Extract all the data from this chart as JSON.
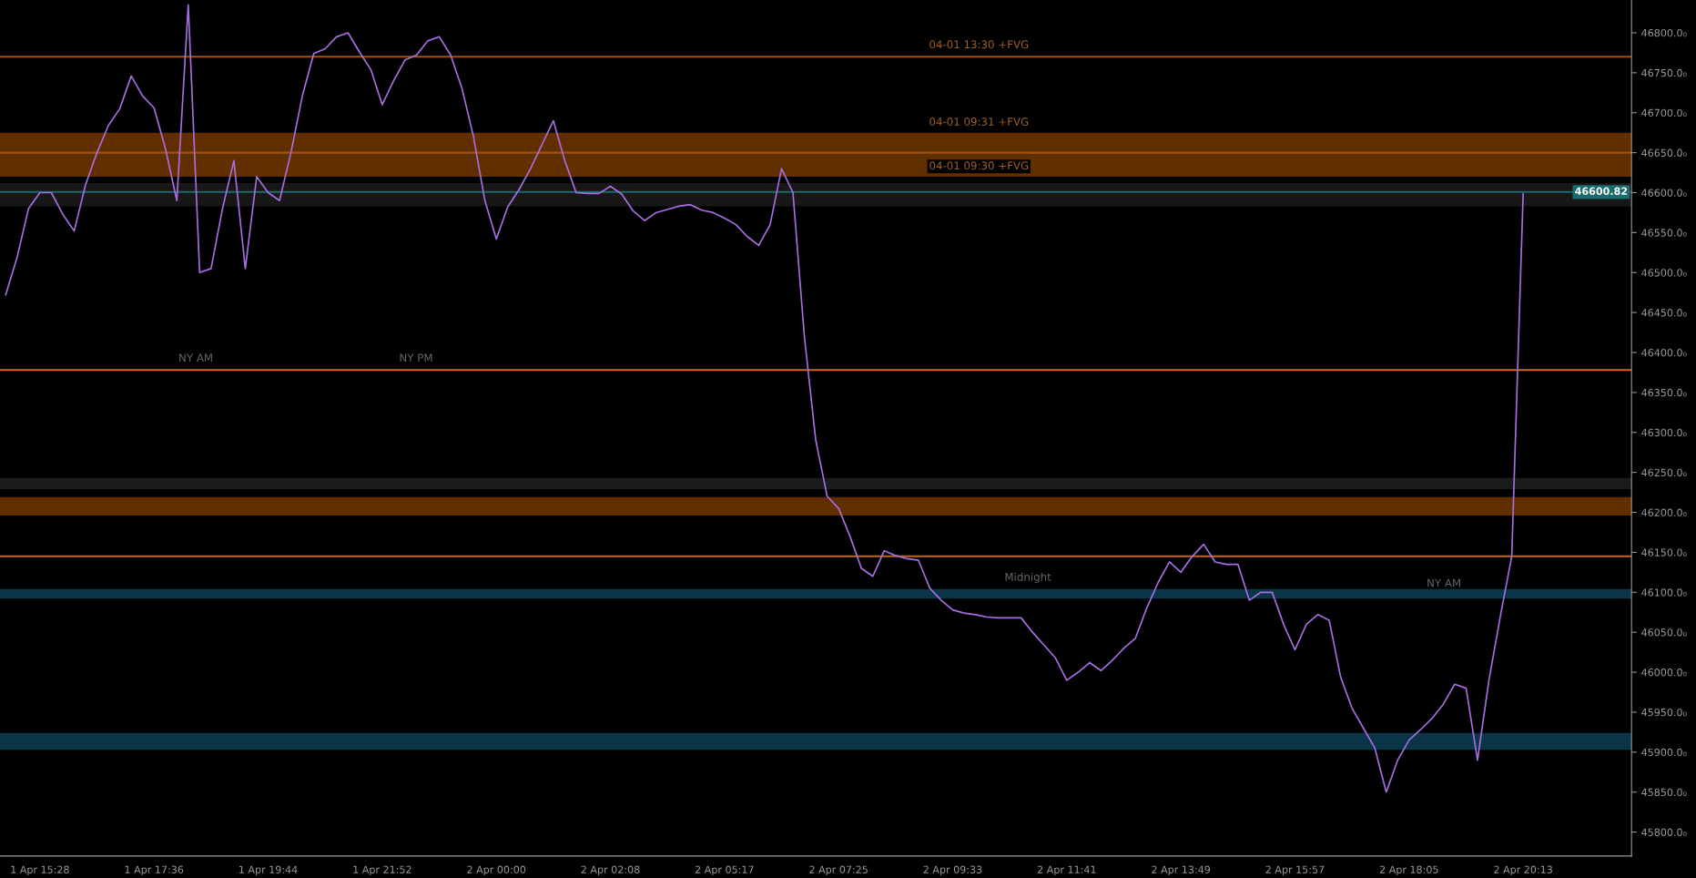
{
  "chart_data": {
    "type": "line",
    "categories": [
      null,
      null,
      null,
      "1 Apr 15:28",
      null,
      null,
      null,
      null,
      null,
      null,
      null,
      null,
      null,
      "1 Apr 17:36",
      null,
      null,
      null,
      null,
      null,
      null,
      null,
      null,
      null,
      "1 Apr 19:44",
      null,
      null,
      null,
      null,
      null,
      null,
      null,
      null,
      null,
      "1 Apr 21:52",
      null,
      null,
      null,
      null,
      null,
      null,
      null,
      null,
      null,
      "2 Apr 00:00",
      null,
      null,
      null,
      null,
      null,
      null,
      null,
      null,
      null,
      "2 Apr 02:08",
      null,
      null,
      null,
      null,
      null,
      null,
      null,
      null,
      null,
      "2 Apr 05:17",
      null,
      null,
      null,
      null,
      null,
      null,
      null,
      null,
      null,
      "2 Apr 07:25",
      null,
      null,
      null,
      null,
      null,
      null,
      null,
      null,
      null,
      "2 Apr 09:33",
      null,
      null,
      null,
      null,
      null,
      null,
      null,
      null,
      null,
      "2 Apr 11:41",
      null,
      null,
      null,
      null,
      null,
      null,
      null,
      null,
      null,
      "2 Apr 13:49",
      null,
      null,
      null,
      null,
      null,
      null,
      null,
      null,
      null,
      "2 Apr 15:57",
      null,
      null,
      null,
      null,
      null,
      null,
      null,
      null,
      null,
      "2 Apr 18:05",
      null,
      null,
      null,
      null,
      null,
      null,
      null,
      null,
      null,
      "2 Apr 20:13",
      null,
      null,
      null,
      null,
      null,
      null,
      null,
      null,
      null
    ],
    "series": [
      {
        "color": "#a66ee0",
        "values": [
          46472,
          46519,
          46580,
          46600,
          46600,
          46573,
          46552,
          46610,
          46650,
          46684,
          46705,
          46746,
          46721,
          46706,
          46655,
          46590,
          46835,
          46500,
          46505,
          46580,
          46640,
          46505,
          46620,
          46600,
          46590,
          46650,
          46721,
          46774,
          46780,
          46795,
          46800,
          46776,
          46754,
          46710,
          46740,
          46766,
          46772,
          46790,
          46795,
          46772,
          46730,
          46670,
          46590,
          46542,
          46582,
          46604,
          46630,
          46660,
          46690,
          46640,
          46600,
          46599,
          46599,
          46608,
          46598,
          46577,
          46565,
          46575,
          46579,
          46583,
          46585,
          46578,
          46575,
          46568,
          46560,
          46545,
          46534,
          46560,
          46630,
          46600,
          46420,
          46290,
          46220,
          46205,
          46170,
          46130,
          46120,
          46152,
          46146,
          46142,
          46140,
          46105,
          46090,
          46078,
          46074,
          46072,
          46069,
          46068,
          46068,
          46068,
          46050,
          46034,
          46018,
          45990,
          46000,
          46012,
          46002,
          46015,
          46030,
          46042,
          46080,
          46112,
          46138,
          46125,
          46145,
          46160,
          46138,
          46135,
          46135,
          46090,
          46100,
          46100,
          46060,
          46028,
          46060,
          46072,
          46065,
          45994,
          45955,
          45930,
          45905,
          45850,
          45890,
          45915,
          45928,
          45942,
          45960,
          45985,
          45980,
          45890,
          45990,
          46070,
          46145,
          46599,
          null,
          null,
          null,
          null,
          null,
          null,
          null,
          null,
          null
        ]
      }
    ],
    "ylim": [
      45770,
      46841
    ],
    "yticks": [
      {
        "value": 45800,
        "label": "45800.0₀"
      },
      {
        "value": 45850,
        "label": "45850.0₀"
      },
      {
        "value": 45900,
        "label": "45900.0₀"
      },
      {
        "value": 45950,
        "label": "45950.0₀"
      },
      {
        "value": 46000,
        "label": "46000.0₀"
      },
      {
        "value": 46050,
        "label": "46050.0₀"
      },
      {
        "value": 46100,
        "label": "46100.0₀"
      },
      {
        "value": 46150,
        "label": "46150.0₀"
      },
      {
        "value": 46200,
        "label": "46200.0₀"
      },
      {
        "value": 46250,
        "label": "46250.0₀"
      },
      {
        "value": 46300,
        "label": "46300.0₀"
      },
      {
        "value": 46350,
        "label": "46350.0₀"
      },
      {
        "value": 46400,
        "label": "46400.0₀"
      },
      {
        "value": 46450,
        "label": "46450.0₀"
      },
      {
        "value": 46500,
        "label": "46500.0₀"
      },
      {
        "value": 46550,
        "label": "46550.0₀"
      },
      {
        "value": 46600,
        "label": "46600.0₀"
      },
      {
        "value": 46650,
        "label": "46650.0₀"
      },
      {
        "value": 46700,
        "label": "46700.0₀"
      },
      {
        "value": 46750,
        "label": "46750.0₀"
      },
      {
        "value": 46800,
        "label": "46800.0₀"
      }
    ],
    "bands": [
      {
        "axis": "y",
        "from": 46620,
        "to": 46675,
        "color": "#6b3300"
      },
      {
        "axis": "y",
        "from": 46583,
        "to": 46612,
        "color": "#1a1a1a"
      },
      {
        "axis": "y",
        "from": 46196,
        "to": 46219,
        "color": "#6b3300"
      },
      {
        "axis": "y",
        "from": 46229,
        "to": 46243,
        "color": "#1c1e20"
      },
      {
        "axis": "y",
        "from": 46092,
        "to": 46104,
        "color": "#0b3a50"
      },
      {
        "axis": "y",
        "from": 45903,
        "to": 45924,
        "color": "#0b3a50"
      }
    ],
    "ref_lines": [
      {
        "axis": "y",
        "value": 46770,
        "color": "#a0520f"
      },
      {
        "axis": "y",
        "value": 46650,
        "color": "#a0520f"
      },
      {
        "axis": "y",
        "value": 46378,
        "color": "#d06a20"
      },
      {
        "axis": "y",
        "value": 46145,
        "color": "#c8641e"
      },
      {
        "axis": "y",
        "value": 46600.82,
        "label": "46600.82",
        "color": "#1a6b6b"
      }
    ],
    "annotations": [
      {
        "text": "NY AM",
        "y": 46378
      },
      {
        "text": "NY PM",
        "y": 46378
      },
      "NY AM",
      "Midnight",
      {
        "text": "04-01 09:31 +FVG",
        "y": 46675
      },
      {
        "text": "04-01 09:30 +FVG",
        "y": 46620
      },
      {
        "text": "04-01 13:30 +FVG",
        "y": 46770
      }
    ],
    "grid": false,
    "legend": false,
    "line_style": "solid",
    "marker": "none"
  }
}
